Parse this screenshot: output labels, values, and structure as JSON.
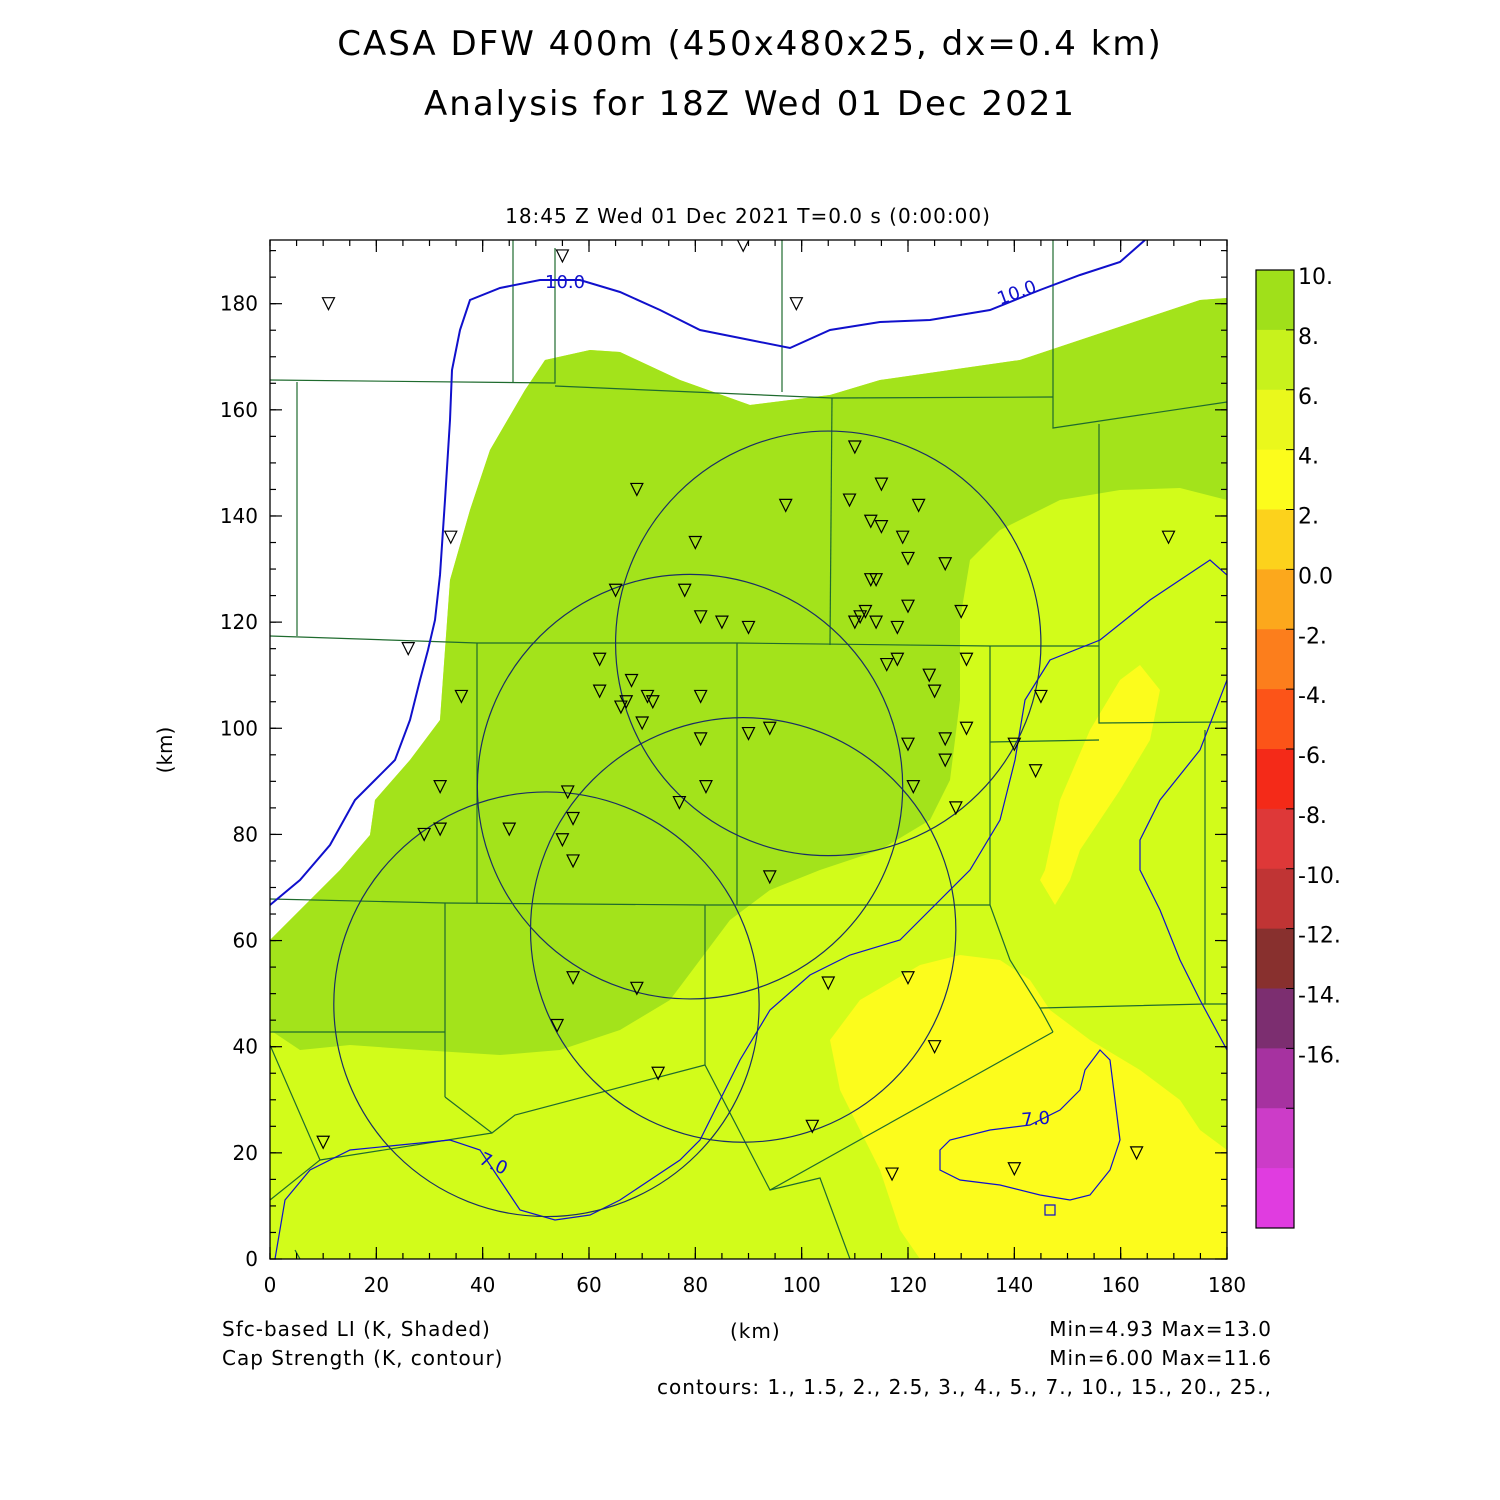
{
  "header": {
    "title_line1": "CASA DFW 400m (450x480x25, dx=0.4 km)",
    "title_line2": "Analysis for 18Z Wed 01 Dec 2021",
    "valid_time": "18:45 Z Wed 01 Dec 2021    T=0.0 s (0:00:00)"
  },
  "footer": {
    "field1": "Sfc-based LI (K, Shaded)",
    "field2": "Cap Strength (K, contour)",
    "xunit": "(km)",
    "minmax1": "Min=4.93 Max=13.0",
    "minmax2": "Min=6.00 Max=11.6",
    "contours": "contours: 1., 1.5, 2., 2.5, 3., 4., 5., 7., 10., 15., 20., 25.,"
  },
  "axes": {
    "x_label": "(km)",
    "y_label": "(km)",
    "x_ticks": [
      0,
      20,
      40,
      60,
      80,
      100,
      120,
      140,
      160,
      180
    ],
    "y_ticks": [
      0,
      20,
      40,
      60,
      80,
      100,
      120,
      140,
      160,
      180
    ],
    "x_range": [
      0,
      180
    ],
    "y_range": [
      0,
      192
    ]
  },
  "colorbar": {
    "labels": [
      "10.",
      "8.",
      "6.",
      "4.",
      "2.",
      "0.0",
      "-2.",
      "-4.",
      "-6.",
      "-8.",
      "-10.",
      "-12.",
      "-14.",
      "-16."
    ],
    "colors": [
      "#a0e01a",
      "#c8f21c",
      "#eaf81c",
      "#fcfc1c",
      "#fcd21c",
      "#fca81c",
      "#fc7e1c",
      "#fc5418",
      "#f42a18",
      "#de3838",
      "#c03434",
      "#88302e",
      "#7c2e70",
      "#a632a0",
      "#cc3cc8",
      "#e03ce0"
    ]
  },
  "contour_labels": [
    {
      "text": "10.0",
      "color": "#1010cc"
    },
    {
      "text": "10.0",
      "color": "#1010cc"
    },
    {
      "text": "7.0",
      "color": "#1010cc"
    },
    {
      "text": "7.0",
      "color": "#1010cc"
    }
  ],
  "shading": {
    "li_8_10_color": "#a3e31b",
    "li_6_8_color": "#d2fc1a",
    "li_4_6_color": "#fcfc1c",
    "boundary_color": "#1f6b2e",
    "cap_contour_color": "#1010cc",
    "radar_ring_color": "#1a2e66"
  },
  "radar_rings": [
    {
      "cx": 52,
      "cy": 48,
      "r": 40
    },
    {
      "cx": 79,
      "cy": 89,
      "r": 40
    },
    {
      "cx": 105,
      "cy": 116,
      "r": 40
    },
    {
      "cx": 89,
      "cy": 62,
      "r": 40
    }
  ],
  "stations": [
    [
      11,
      180
    ],
    [
      55,
      189
    ],
    [
      89,
      191
    ],
    [
      99,
      180
    ],
    [
      34,
      136
    ],
    [
      26,
      115
    ],
    [
      36,
      106
    ],
    [
      32,
      89
    ],
    [
      29,
      80
    ],
    [
      32,
      81
    ],
    [
      45,
      81
    ],
    [
      56,
      88
    ],
    [
      57,
      83
    ],
    [
      55,
      79
    ],
    [
      57,
      75
    ],
    [
      69,
      145
    ],
    [
      65,
      126
    ],
    [
      62,
      113
    ],
    [
      62,
      107
    ],
    [
      68,
      109
    ],
    [
      66,
      104
    ],
    [
      67,
      105
    ],
    [
      70,
      101
    ],
    [
      71,
      106
    ],
    [
      72,
      105
    ],
    [
      80,
      135
    ],
    [
      78,
      126
    ],
    [
      81,
      121
    ],
    [
      85,
      120
    ],
    [
      90,
      119
    ],
    [
      81,
      106
    ],
    [
      77,
      86
    ],
    [
      81,
      98
    ],
    [
      82,
      89
    ],
    [
      90,
      99
    ],
    [
      94,
      100
    ],
    [
      97,
      142
    ],
    [
      94,
      72
    ],
    [
      110,
      153
    ],
    [
      109,
      143
    ],
    [
      113,
      128
    ],
    [
      114,
      128
    ],
    [
      115,
      146
    ],
    [
      115,
      138
    ],
    [
      113,
      139
    ],
    [
      111,
      121
    ],
    [
      110,
      120
    ],
    [
      112,
      122
    ],
    [
      114,
      120
    ],
    [
      119,
      136
    ],
    [
      120,
      132
    ],
    [
      120,
      123
    ],
    [
      118,
      119
    ],
    [
      116,
      112
    ],
    [
      118,
      113
    ],
    [
      122,
      142
    ],
    [
      127,
      131
    ],
    [
      130,
      122
    ],
    [
      131,
      113
    ],
    [
      124,
      110
    ],
    [
      125,
      107
    ],
    [
      131,
      100
    ],
    [
      120,
      97
    ],
    [
      127,
      98
    ],
    [
      127,
      94
    ],
    [
      121,
      89
    ],
    [
      129,
      85
    ],
    [
      140,
      97
    ],
    [
      145,
      106
    ],
    [
      144,
      92
    ],
    [
      169,
      136
    ],
    [
      57,
      53
    ],
    [
      69,
      51
    ],
    [
      54,
      44
    ],
    [
      73,
      35
    ],
    [
      10,
      22
    ],
    [
      105,
      52
    ],
    [
      120,
      53
    ],
    [
      125,
      40
    ],
    [
      102,
      25
    ],
    [
      117,
      16
    ],
    [
      140,
      17
    ],
    [
      163,
      20
    ]
  ]
}
